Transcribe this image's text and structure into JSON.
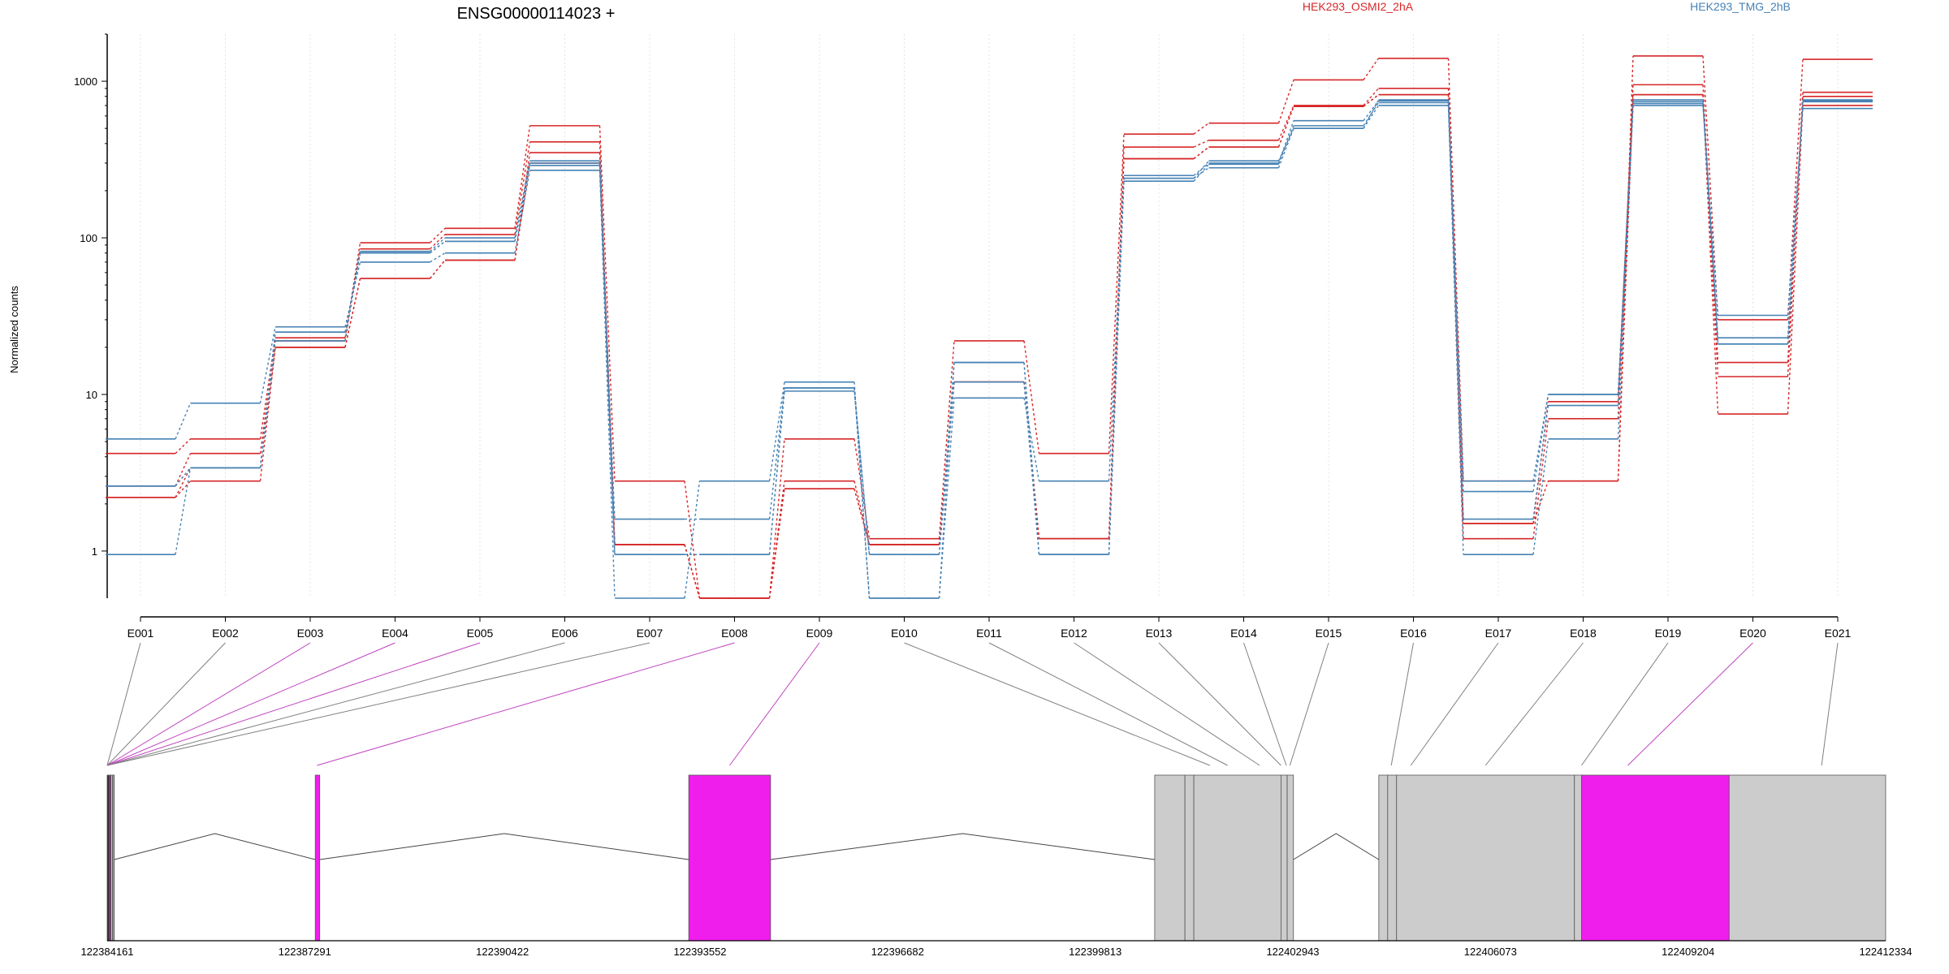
{
  "chart_data": {
    "type": "line",
    "title": "ENSG00000114023 +",
    "ylabel": "Normalized counts",
    "xlabel": "",
    "y_scale": "log",
    "ylim": [
      0.5,
      2000
    ],
    "y_ticks": [
      {
        "value": 1,
        "label": "1"
      },
      {
        "value": 10,
        "label": "10"
      },
      {
        "value": 100,
        "label": "100"
      },
      {
        "value": 1000,
        "label": "1000"
      }
    ],
    "grid": "vertical dotted lines at each exon",
    "legend": [
      {
        "name": "HEK293_OSMI2_2hA",
        "color": "#d62728"
      },
      {
        "name": "HEK293_TMG_2hB",
        "color": "#4682b4"
      }
    ],
    "categories": [
      "E001",
      "E002",
      "E003",
      "E004",
      "E005",
      "E006",
      "E007",
      "E008",
      "E009",
      "E010",
      "E011",
      "E012",
      "E013",
      "E014",
      "E015",
      "E016",
      "E017",
      "E018",
      "E019",
      "E020",
      "E021"
    ],
    "series": [
      {
        "group": "red",
        "color": "#d62728",
        "values": [
          4.2,
          5.2,
          23,
          93,
          115,
          520,
          2.8,
          0.5,
          5.2,
          1.2,
          22,
          4.2,
          460,
          540,
          1020,
          1400,
          2.8,
          2.8,
          1450,
          30,
          1380
        ]
      },
      {
        "group": "red",
        "color": "#d62728",
        "values": [
          2.6,
          4.2,
          22,
          85,
          105,
          410,
          1.1,
          0.5,
          2.8,
          1.1,
          12,
          1.2,
          380,
          420,
          700,
          900,
          1.2,
          7,
          950,
          16,
          850
        ]
      },
      {
        "group": "red",
        "color": "#d62728",
        "values": [
          2.2,
          2.8,
          20,
          55,
          72,
          350,
          1.1,
          0.5,
          2.5,
          1.1,
          12,
          1.2,
          320,
          380,
          690,
          820,
          1.5,
          9,
          820,
          13,
          800
        ]
      },
      {
        "group": "red",
        "color": "#d62728",
        "values": [
          2.2,
          3.4,
          20,
          55,
          72,
          300,
          1.1,
          0.5,
          2.5,
          1.1,
          12,
          1.2,
          320,
          380,
          690,
          820,
          1.5,
          2.8,
          820,
          7.5,
          700
        ]
      },
      {
        "group": "blue",
        "color": "#4682b4",
        "values": [
          5.2,
          8.8,
          27,
          70,
          80,
          270,
          0.5,
          2.8,
          12,
          0.5,
          9.5,
          2.8,
          240,
          280,
          500,
          700,
          0.95,
          5.2,
          700,
          32,
          670
        ]
      },
      {
        "group": "blue",
        "color": "#4682b4",
        "values": [
          0.95,
          3.4,
          25,
          80,
          95,
          290,
          1.6,
          1.6,
          11,
          0.95,
          12,
          0.95,
          230,
          295,
          520,
          730,
          1.6,
          8.5,
          720,
          23,
          740
        ]
      },
      {
        "group": "blue",
        "color": "#4682b4",
        "values": [
          2.6,
          3.4,
          25,
          80,
          95,
          300,
          0.95,
          0.95,
          10.5,
          0.95,
          16,
          0.95,
          250,
          300,
          560,
          750,
          2.8,
          10,
          740,
          21,
          750
        ]
      },
      {
        "group": "blue",
        "color": "#4682b4",
        "values": [
          2.6,
          3.4,
          22,
          82,
          100,
          310,
          0.95,
          0.95,
          11,
          0.5,
          16,
          0.95,
          240,
          310,
          500,
          760,
          2.4,
          10,
          760,
          21,
          760
        ]
      }
    ]
  },
  "gene_model": {
    "coord_ticks": [
      "122384161",
      "122387291",
      "122390422",
      "122393552",
      "122396682",
      "122399813",
      "122402943",
      "122406073",
      "122409204",
      "122412334"
    ],
    "colors": {
      "exon": "#cccccc",
      "highlight": "#f01eed",
      "connector_plain": "#808080",
      "connector_highlight": "#c044c0"
    }
  }
}
